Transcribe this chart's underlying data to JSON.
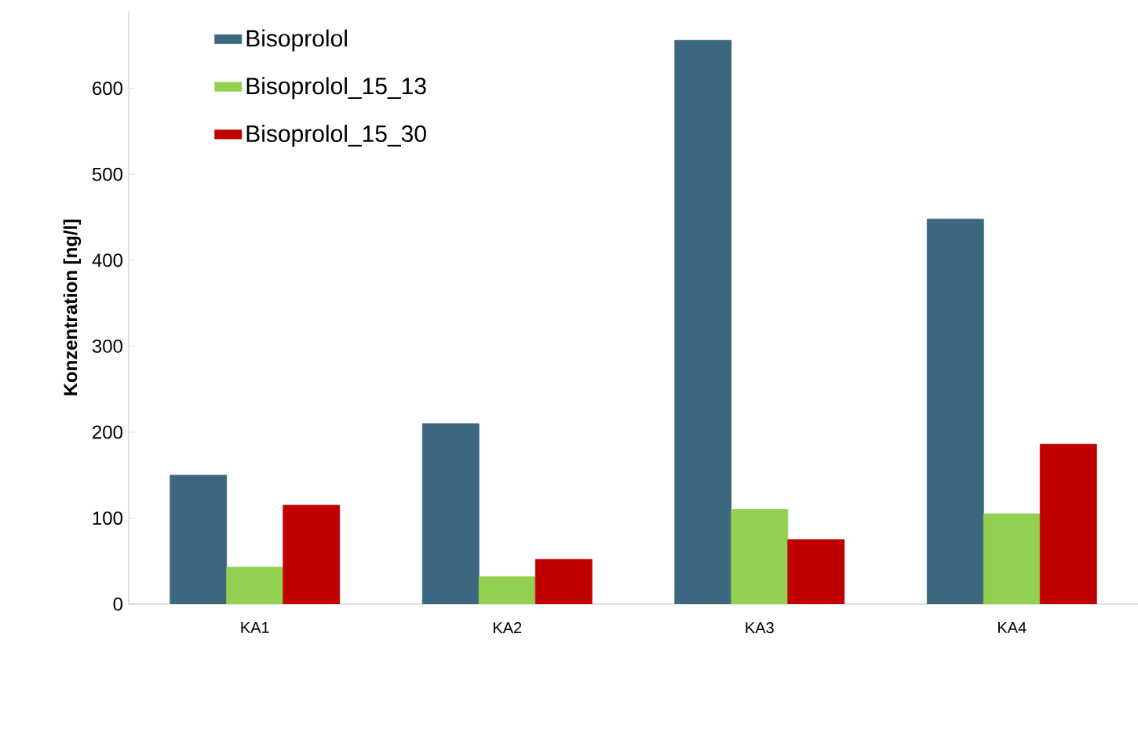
{
  "chart_data": {
    "type": "bar",
    "ylabel": "Konzentration [ng/l]",
    "categories": [
      "KA1",
      "KA2",
      "KA3",
      "KA4"
    ],
    "series": [
      {
        "name": "Bisoprolol",
        "color": "#3b677f",
        "values": [
          150,
          210,
          656,
          448
        ]
      },
      {
        "name": "Bisoprolol_15_13",
        "color": "#92d050",
        "values": [
          43,
          32,
          110,
          105
        ]
      },
      {
        "name": "Bisoprolol_15_30",
        "color": "#c00000",
        "values": [
          115,
          52,
          75,
          186
        ]
      }
    ],
    "ylim": [
      0,
      690
    ],
    "yticks": [
      0,
      100,
      200,
      300,
      400,
      500,
      600
    ],
    "grid": false,
    "legend": "top left"
  }
}
